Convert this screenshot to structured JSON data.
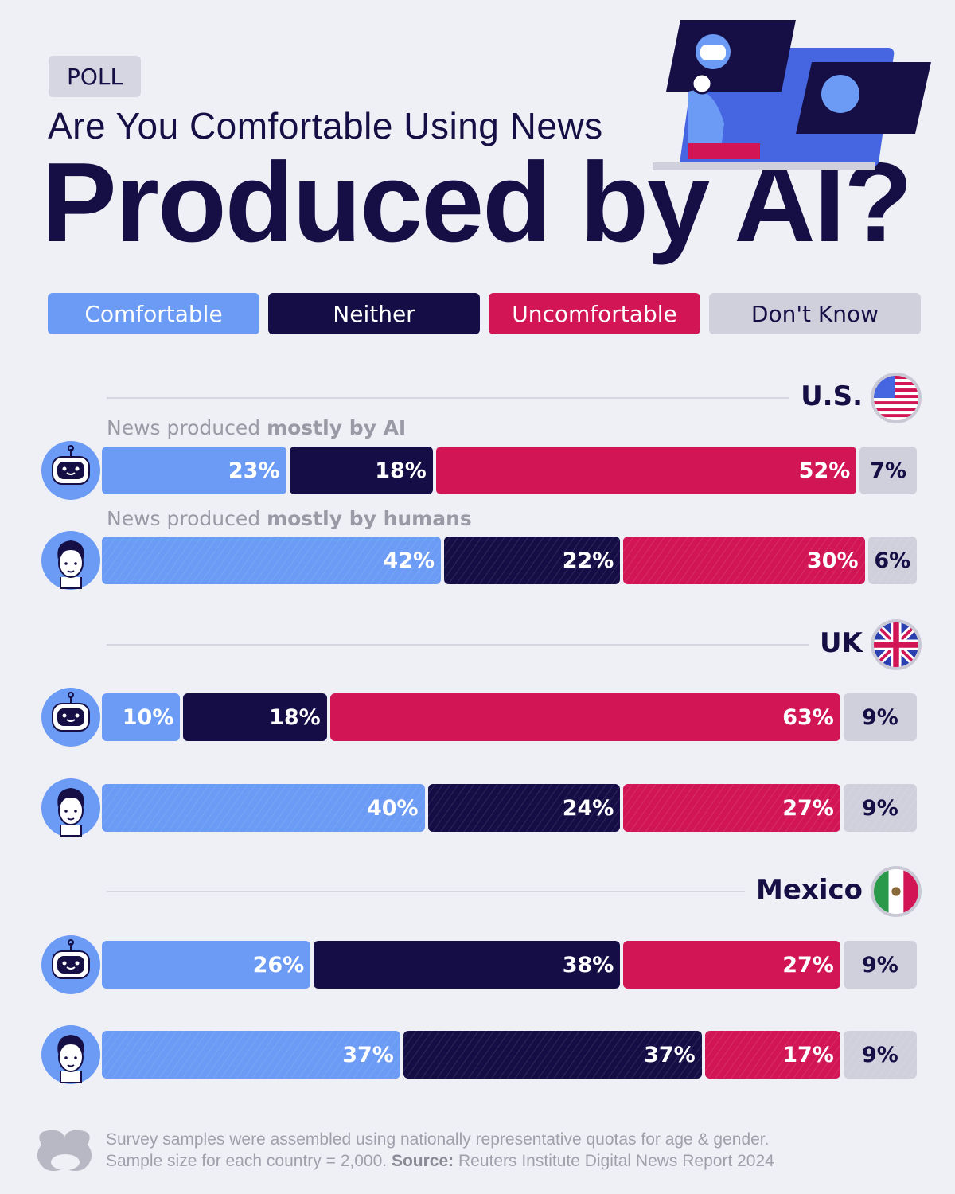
{
  "header": {
    "badge": "POLL",
    "subtitle": "Are You Comfortable Using News",
    "title": "Produced by AI?"
  },
  "legend": [
    {
      "label": "Comfortable",
      "color": "#6b9bf5"
    },
    {
      "label": "Neither",
      "color": "#150d45"
    },
    {
      "label": "Uncomfortable",
      "color": "#d21555"
    },
    {
      "label": "Don't Know",
      "color": "#d0d0dc"
    }
  ],
  "row_labels": {
    "ai_prefix": "News produced ",
    "ai_bold": "mostly by AI",
    "human_prefix": "News produced ",
    "human_bold": "mostly by humans"
  },
  "chart_data": {
    "type": "bar",
    "stacked": true,
    "orientation": "horizontal",
    "categories": [
      "Comfortable",
      "Neither",
      "Uncomfortable",
      "Don't Know"
    ],
    "groups": [
      {
        "country": "U.S.",
        "flag": "us",
        "rows": [
          {
            "row": "AI",
            "values": [
              23,
              18,
              52,
              7
            ],
            "labels": [
              "23%",
              "18%",
              "52%",
              "7%"
            ]
          },
          {
            "row": "Humans",
            "values": [
              42,
              22,
              30,
              6
            ],
            "labels": [
              "42%",
              "22%",
              "30%",
              "6%"
            ]
          }
        ]
      },
      {
        "country": "UK",
        "flag": "uk",
        "rows": [
          {
            "row": "AI",
            "values": [
              10,
              18,
              63,
              9
            ],
            "labels": [
              "10%",
              "18%",
              "63%",
              "9%"
            ]
          },
          {
            "row": "Humans",
            "values": [
              40,
              24,
              27,
              9
            ],
            "labels": [
              "40%",
              "24%",
              "27%",
              "9%"
            ]
          }
        ]
      },
      {
        "country": "Mexico",
        "flag": "mexico",
        "rows": [
          {
            "row": "AI",
            "values": [
              26,
              38,
              27,
              9
            ],
            "labels": [
              "26%",
              "38%",
              "27%",
              "9%"
            ]
          },
          {
            "row": "Humans",
            "values": [
              37,
              37,
              17,
              9
            ],
            "labels": [
              "37%",
              "37%",
              "17%",
              "9%"
            ]
          }
        ]
      }
    ]
  },
  "footer": {
    "line1": "Survey samples were assembled using nationally representative quotas for age & gender.",
    "line2_prefix": "Sample size for each country = 2,000. ",
    "source_label": "Source:",
    "source": " Reuters Institute Digital News Report 2024"
  }
}
